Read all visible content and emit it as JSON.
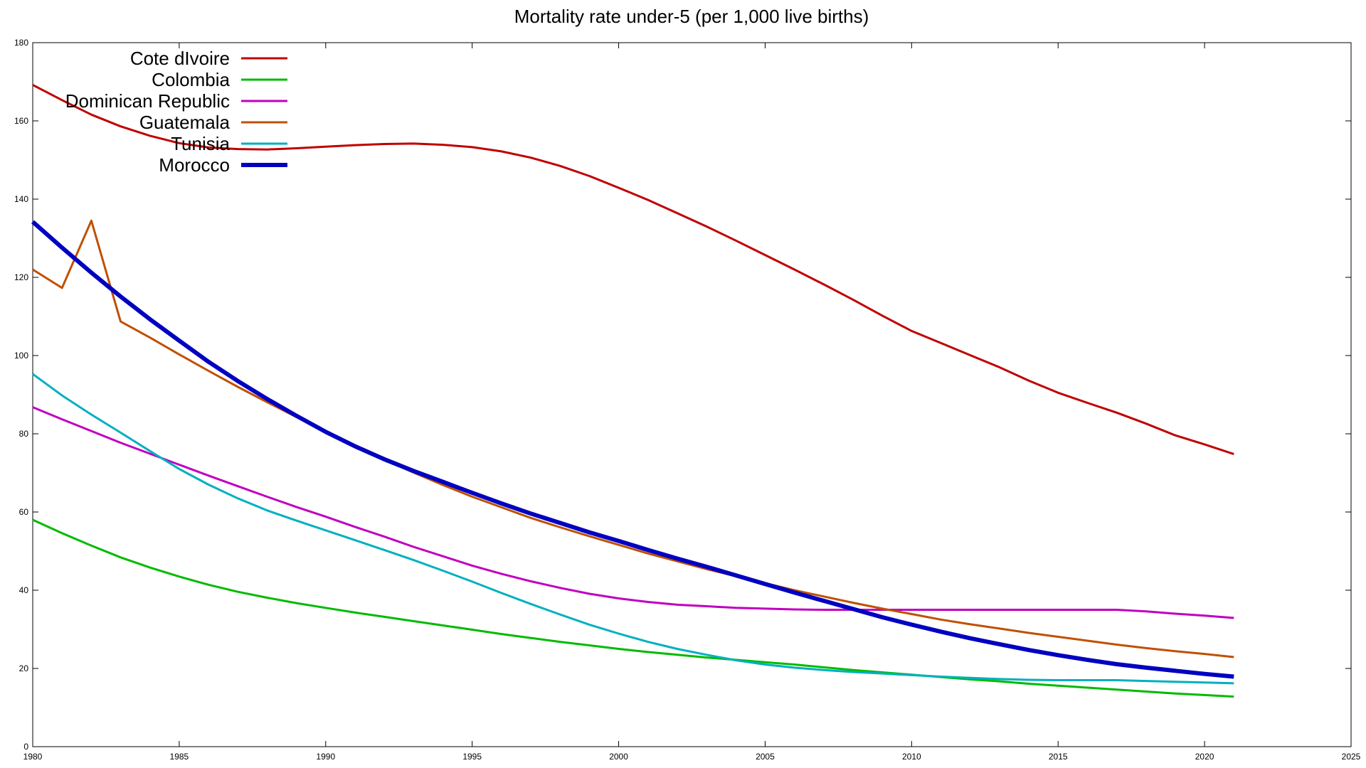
{
  "chart_data": {
    "type": "line",
    "title": "Mortality rate under-5 (per 1,000 live births)",
    "xlabel": "",
    "ylabel": "",
    "xlim": [
      1980,
      2025
    ],
    "ylim": [
      0,
      180
    ],
    "x_ticks": [
      1980,
      1985,
      1990,
      1995,
      2000,
      2005,
      2010,
      2015,
      2020,
      2025
    ],
    "y_ticks": [
      0,
      20,
      40,
      60,
      80,
      100,
      120,
      140,
      160,
      180
    ],
    "grid": false,
    "legend_position": "top-left",
    "x": [
      1980,
      1981,
      1982,
      1983,
      1984,
      1985,
      1986,
      1987,
      1988,
      1989,
      1990,
      1991,
      1992,
      1993,
      1994,
      1995,
      1996,
      1997,
      1998,
      1999,
      2000,
      2001,
      2002,
      2003,
      2004,
      2005,
      2006,
      2007,
      2008,
      2009,
      2010,
      2011,
      2012,
      2013,
      2014,
      2015,
      2016,
      2017,
      2018,
      2019,
      2020,
      2021
    ],
    "series": [
      {
        "name": "Cote dIvoire",
        "color": "#c00000",
        "width": 3,
        "values": [
          169.2,
          165.3,
          161.6,
          158.6,
          156.2,
          154.3,
          153.2,
          152.8,
          152.7,
          153.0,
          153.4,
          153.8,
          154.1,
          154.2,
          153.9,
          153.3,
          152.2,
          150.6,
          148.5,
          145.9,
          142.9,
          139.8,
          136.4,
          133.0,
          129.4,
          125.7,
          122.0,
          118.2,
          114.3,
          110.2,
          106.3,
          103.2,
          100.1,
          97.0,
          93.6,
          90.5,
          87.9,
          85.4,
          82.6,
          79.6,
          77.3,
          74.8
        ]
      },
      {
        "name": "Colombia",
        "color": "#00bb00",
        "width": 3,
        "values": [
          58.0,
          54.6,
          51.4,
          48.4,
          45.8,
          43.5,
          41.4,
          39.6,
          38.1,
          36.7,
          35.5,
          34.3,
          33.2,
          32.1,
          31.0,
          29.9,
          28.8,
          27.8,
          26.8,
          25.9,
          25.0,
          24.2,
          23.5,
          22.8,
          22.2,
          21.6,
          21.0,
          20.3,
          19.6,
          19.0,
          18.4,
          17.8,
          17.2,
          16.7,
          16.1,
          15.6,
          15.1,
          14.6,
          14.1,
          13.6,
          13.2,
          12.8
        ]
      },
      {
        "name": "Dominican Republic",
        "color": "#c000c0",
        "width": 3,
        "values": [
          86.8,
          83.7,
          80.7,
          77.7,
          74.9,
          72.1,
          69.3,
          66.6,
          63.9,
          61.3,
          58.8,
          56.2,
          53.7,
          51.1,
          48.7,
          46.3,
          44.2,
          42.3,
          40.6,
          39.1,
          37.9,
          37.0,
          36.3,
          35.9,
          35.5,
          35.3,
          35.1,
          35.0,
          35.0,
          35.0,
          35.0,
          35.0,
          35.0,
          35.0,
          35.0,
          35.0,
          35.0,
          35.0,
          34.6,
          34.0,
          33.5,
          32.9
        ]
      },
      {
        "name": "Guatemala",
        "color": "#c05000",
        "width": 3,
        "values": [
          122.0,
          117.3,
          134.5,
          108.7,
          104.6,
          100.3,
          96.1,
          92.0,
          88.1,
          84.3,
          80.5,
          76.9,
          73.4,
          70.1,
          66.9,
          63.9,
          61.2,
          58.5,
          56.1,
          53.8,
          51.6,
          49.4,
          47.4,
          45.4,
          43.6,
          41.8,
          40.0,
          38.4,
          36.8,
          35.3,
          33.9,
          32.5,
          31.3,
          30.2,
          29.1,
          28.1,
          27.1,
          26.1,
          25.2,
          24.4,
          23.7,
          22.9
        ]
      },
      {
        "name": "Tunisia",
        "color": "#00b0c0",
        "width": 3,
        "values": [
          95.3,
          89.8,
          84.9,
          80.3,
          75.6,
          71.0,
          67.0,
          63.5,
          60.4,
          57.8,
          55.3,
          52.8,
          50.3,
          47.7,
          45.0,
          42.2,
          39.3,
          36.5,
          33.8,
          31.2,
          28.9,
          26.8,
          25.0,
          23.5,
          22.1,
          21.0,
          20.2,
          19.6,
          19.1,
          18.7,
          18.3,
          17.9,
          17.6,
          17.3,
          17.1,
          17.0,
          17.0,
          17.0,
          16.8,
          16.6,
          16.4,
          16.2
        ]
      },
      {
        "name": "Morocco",
        "color": "#0000c0",
        "width": 6,
        "values": [
          134.2,
          127.6,
          121.2,
          115.1,
          109.3,
          103.8,
          98.4,
          93.5,
          88.9,
          84.6,
          80.5,
          76.8,
          73.5,
          70.5,
          67.7,
          64.9,
          62.2,
          59.6,
          57.2,
          54.8,
          52.6,
          50.3,
          48.1,
          46.0,
          43.8,
          41.6,
          39.4,
          37.3,
          35.2,
          33.1,
          31.2,
          29.4,
          27.7,
          26.2,
          24.7,
          23.4,
          22.2,
          21.1,
          20.2,
          19.4,
          18.6,
          17.9
        ]
      }
    ]
  }
}
